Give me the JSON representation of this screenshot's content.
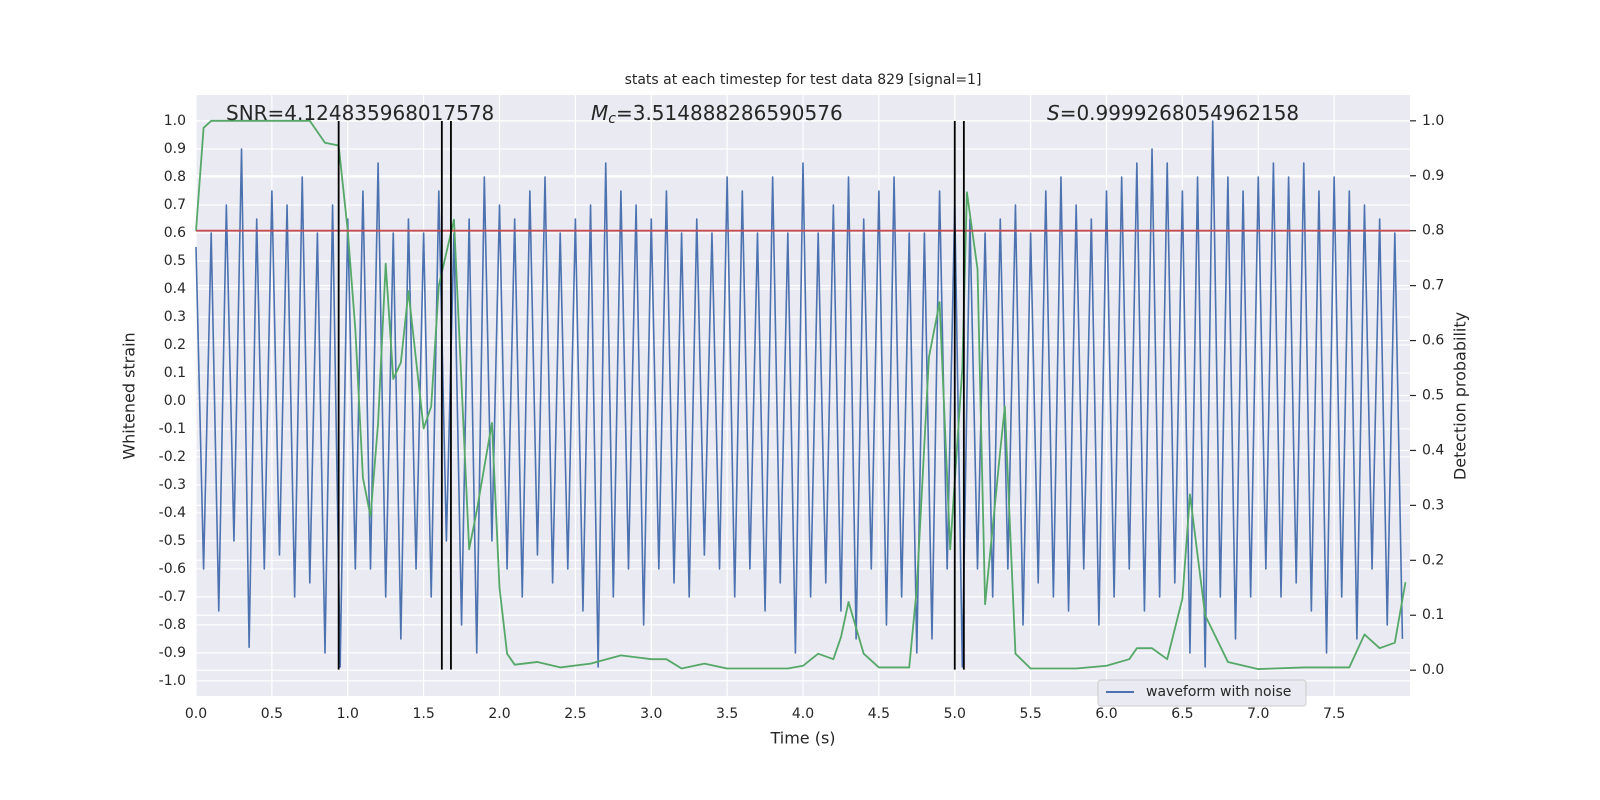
{
  "chart_data": {
    "type": "line",
    "title": "stats at each timestep for test data 829 [signal=1]",
    "xlabel": "Time (s)",
    "ylabel": "Whitened strain",
    "y2label": "Detection probability",
    "annotations": [
      {
        "text": "SNR=4.124835968017578"
      },
      {
        "symbol": "M",
        "subscript": "c",
        "text": "=3.514888286590576"
      },
      {
        "symbol": "S",
        "text": "=0.9999268054962158"
      }
    ],
    "xlim": [
      0,
      8.0
    ],
    "ylim": [
      -1.054,
      1.093
    ],
    "y2lim": [
      -0.047,
      1.047
    ],
    "xticks": [
      {
        "value": 0,
        "label": "0.0"
      },
      0.5,
      {
        "value": 1,
        "label": "1.0"
      },
      1.5,
      {
        "value": 2,
        "label": "2.0"
      },
      2.5,
      {
        "value": 3,
        "label": "3.0"
      },
      3.5,
      {
        "value": 4,
        "label": "4.0"
      },
      4.5,
      {
        "value": 5,
        "label": "5.0"
      },
      5.5,
      {
        "value": 6,
        "label": "6.0"
      },
      6.5,
      {
        "value": 7,
        "label": "7.0"
      },
      7.5
    ],
    "yticks": [
      {
        "value": 1,
        "label": "1.0"
      },
      0.9,
      0.8,
      0.7,
      0.6,
      0.5,
      0.4,
      0.3,
      0.2,
      0.1,
      {
        "value": 0,
        "label": "0.0"
      },
      -0.1,
      -0.2,
      -0.3,
      -0.4,
      -0.5,
      -0.6,
      -0.7,
      -0.8,
      -0.9,
      {
        "value": -1,
        "label": "-1.0"
      }
    ],
    "y2ticks": [
      {
        "value": 1,
        "label": "1.0"
      },
      0.9,
      0.8,
      0.7,
      0.6,
      0.5,
      0.4,
      0.3,
      0.2,
      0.1,
      {
        "value": 0,
        "label": "0.0"
      }
    ],
    "grid": true,
    "legend": "lower right",
    "series": [
      {
        "name": "waveform with noise",
        "color": "#4c72b0",
        "x": [
          0,
          0.05,
          0.1,
          0.15,
          0.2,
          0.25,
          0.3,
          0.35,
          0.4,
          0.45,
          0.5,
          0.55,
          0.6,
          0.65,
          0.7,
          0.75,
          0.8,
          0.85,
          0.9,
          0.95,
          1,
          1.05,
          1.1,
          1.15,
          1.2,
          1.25,
          1.3,
          1.35,
          1.4,
          1.45,
          1.5,
          1.55,
          1.6,
          1.65,
          1.7,
          1.75,
          1.8,
          1.85,
          1.9,
          1.95,
          2,
          2.05,
          2.1,
          2.15,
          2.2,
          2.25,
          2.3,
          2.35,
          2.4,
          2.45,
          2.5,
          2.55,
          2.6,
          2.65,
          2.7,
          2.75,
          2.8,
          2.85,
          2.9,
          2.95,
          3,
          3.05,
          3.1,
          3.15,
          3.2,
          3.25,
          3.3,
          3.35,
          3.4,
          3.45,
          3.5,
          3.55,
          3.6,
          3.65,
          3.7,
          3.75,
          3.8,
          3.85,
          3.9,
          3.95,
          4,
          4.05,
          4.1,
          4.15,
          4.2,
          4.25,
          4.3,
          4.35,
          4.4,
          4.45,
          4.5,
          4.55,
          4.6,
          4.65,
          4.7,
          4.75,
          4.8,
          4.85,
          4.9,
          4.95,
          5,
          5.05,
          5.1,
          5.15,
          5.2,
          5.25,
          5.3,
          5.35,
          5.4,
          5.45,
          5.5,
          5.55,
          5.6,
          5.65,
          5.7,
          5.75,
          5.8,
          5.85,
          5.9,
          5.95,
          6,
          6.05,
          6.1,
          6.15,
          6.2,
          6.25,
          6.3,
          6.35,
          6.4,
          6.45,
          6.5,
          6.55,
          6.6,
          6.65,
          6.7,
          6.75,
          6.8,
          6.85,
          6.9,
          6.95,
          7,
          7.05,
          7.1,
          7.15,
          7.2,
          7.25,
          7.3,
          7.35,
          7.4,
          7.45,
          7.5,
          7.55,
          7.6,
          7.65,
          7.7,
          7.75,
          7.8,
          7.85,
          7.9,
          7.95
        ],
        "values": [
          0.55,
          -0.6,
          0.6,
          -0.75,
          0.7,
          -0.5,
          0.9,
          -0.88,
          0.65,
          -0.6,
          0.75,
          -0.55,
          0.7,
          -0.7,
          0.8,
          -0.65,
          0.6,
          -0.9,
          0.7,
          -0.95,
          0.65,
          -0.6,
          0.75,
          -0.6,
          0.85,
          -0.7,
          0.6,
          -0.85,
          0.65,
          -0.6,
          0.6,
          -0.7,
          0.75,
          -0.5,
          0.6,
          -0.8,
          0.65,
          -0.9,
          0.8,
          -0.5,
          0.7,
          -0.6,
          0.65,
          -0.7,
          0.75,
          -0.55,
          0.8,
          -0.65,
          0.6,
          -0.6,
          0.65,
          -0.75,
          0.7,
          -0.95,
          0.85,
          -0.7,
          0.75,
          -0.6,
          0.7,
          -0.8,
          0.65,
          -0.6,
          0.75,
          -0.65,
          0.6,
          -0.7,
          0.65,
          -0.55,
          0.6,
          -0.6,
          0.8,
          -0.7,
          0.75,
          -0.6,
          0.6,
          -0.75,
          0.8,
          -0.65,
          0.6,
          -0.9,
          0.85,
          -0.7,
          0.6,
          -0.65,
          0.7,
          -0.75,
          0.8,
          -0.85,
          0.65,
          -0.6,
          0.75,
          -0.8,
          0.8,
          -0.7,
          0.6,
          -0.9,
          0.6,
          -0.85,
          0.75,
          -0.6,
          0.7,
          -0.95,
          0.65,
          -0.6,
          0.6,
          -0.7,
          0.65,
          -0.6,
          0.7,
          -0.8,
          0.6,
          -0.65,
          0.75,
          -0.7,
          0.8,
          -0.75,
          0.7,
          -0.6,
          0.65,
          -0.8,
          0.75,
          -0.7,
          0.8,
          -0.6,
          0.85,
          -0.75,
          0.9,
          -0.7,
          0.85,
          -0.65,
          0.75,
          -0.9,
          0.8,
          -0.95,
          1.0,
          -0.7,
          0.8,
          -0.85,
          0.75,
          -0.7,
          0.8,
          -0.6,
          0.85,
          -0.7,
          0.8,
          -0.65,
          0.85,
          -0.75,
          0.75,
          -0.9,
          0.8,
          -0.7,
          0.75,
          -0.85,
          0.7,
          -0.6,
          0.65,
          -0.8,
          0.6,
          -0.85
        ]
      },
      {
        "color": "#55a868",
        "axis": "y2",
        "x": [
          0,
          0.05,
          0.1,
          0.75,
          0.85,
          0.94,
          1,
          1.05,
          1.1,
          1.15,
          1.2,
          1.25,
          1.3,
          1.35,
          1.4,
          1.5,
          1.55,
          1.6,
          1.7,
          1.8,
          1.85,
          1.95,
          2,
          2.05,
          2.1,
          2.25,
          2.4,
          2.6,
          2.8,
          3,
          3.1,
          3.2,
          3.35,
          3.5,
          3.9,
          4,
          4.1,
          4.2,
          4.25,
          4.3,
          4.4,
          4.5,
          4.7,
          4.75,
          4.83,
          4.9,
          4.97,
          5.05,
          5.08,
          5.15,
          5.2,
          5.3,
          5.33,
          5.4,
          5.5,
          5.8,
          6,
          6.15,
          6.2,
          6.3,
          6.4,
          6.5,
          6.55,
          6.65,
          6.8,
          7,
          7.3,
          7.6,
          7.7,
          7.8,
          7.9,
          7.97
        ],
        "values": [
          0.8,
          0.987,
          1.0,
          1.0,
          0.96,
          0.955,
          0.8,
          0.62,
          0.35,
          0.28,
          0.45,
          0.74,
          0.53,
          0.56,
          0.69,
          0.44,
          0.48,
          0.7,
          0.82,
          0.22,
          0.29,
          0.45,
          0.15,
          0.03,
          0.01,
          0.015,
          0.005,
          0.012,
          0.027,
          0.02,
          0.02,
          0.003,
          0.012,
          0.003,
          0.003,
          0.008,
          0.03,
          0.02,
          0.06,
          0.124,
          0.03,
          0.005,
          0.005,
          0.15,
          0.57,
          0.67,
          0.22,
          0.55,
          0.87,
          0.73,
          0.12,
          0.4,
          0.48,
          0.03,
          0.003,
          0.003,
          0.008,
          0.02,
          0.04,
          0.04,
          0.02,
          0.13,
          0.32,
          0.1,
          0.015,
          0.002,
          0.005,
          0.005,
          0.065,
          0.04,
          0.05,
          0.16
        ]
      }
    ],
    "threshold": {
      "value": 0.8,
      "axis": "y2",
      "color": "#c44e52"
    },
    "vlines": {
      "x": [
        0.94,
        1.62,
        1.68,
        5.0,
        5.06
      ],
      "ymin": -0.96,
      "ymax": 1.0,
      "color": "#000000"
    }
  }
}
